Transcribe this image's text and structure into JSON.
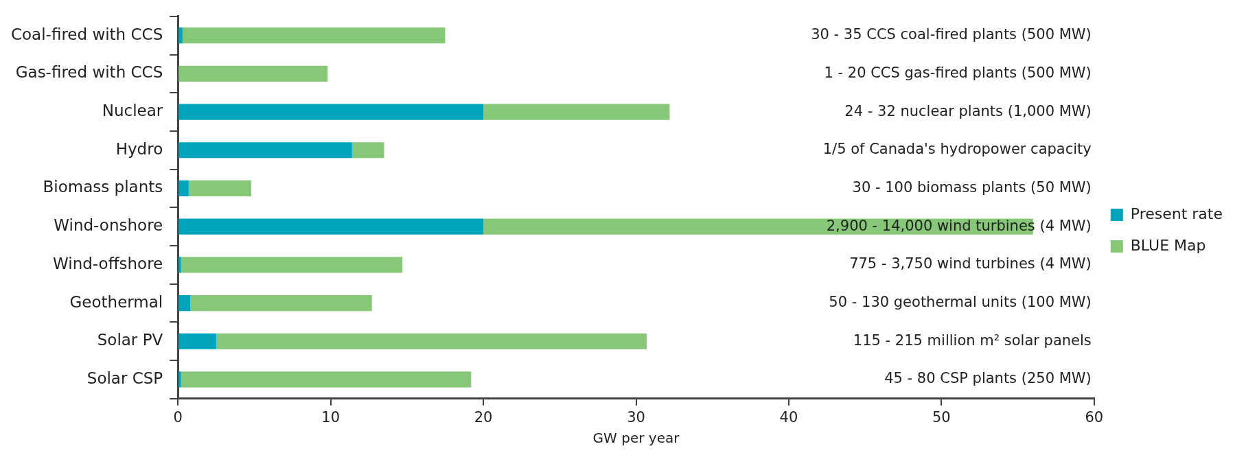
{
  "chart_data": {
    "type": "bar",
    "orientation": "horizontal",
    "stacked": true,
    "categories": [
      "Coal-fired with CCS",
      "Gas-fired with CCS",
      "Nuclear",
      "Hydro",
      "Biomass plants",
      "Wind-onshore",
      "Wind-offshore",
      "Geothermal",
      "Solar PV",
      "Solar CSP"
    ],
    "series": [
      {
        "name": "Present rate",
        "color": "#00a5bd",
        "values": [
          0.3,
          0,
          20,
          11.4,
          0.7,
          20,
          0.2,
          0.8,
          2.5,
          0.2
        ]
      },
      {
        "name": "BLUE Map",
        "color": "#86c878",
        "values": [
          17.2,
          9.8,
          12.2,
          2.1,
          4.1,
          36,
          14.5,
          11.9,
          28.2,
          19
        ]
      }
    ],
    "xlabel": "GW per year",
    "xlim": [
      0,
      60
    ],
    "xticks": [
      0,
      10,
      20,
      30,
      40,
      50,
      60
    ],
    "grid": false,
    "legend": "right",
    "annotations": [
      "30 - 35 CCS coal-fired plants (500 MW)",
      "1 - 20 CCS gas-fired plants (500 MW)",
      "24 - 32 nuclear plants (1,000 MW)",
      "1/5 of Canada's hydropower capacity",
      "30 - 100 biomass plants (50 MW)",
      "2,900 - 14,000 wind turbines (4 MW)",
      "775 - 3,750 wind turbines (4 MW)",
      "50 - 130 geothermal units (100 MW)",
      "115 - 215 million m² solar panels",
      "45 - 80 CSP plants (250 MW)"
    ]
  }
}
